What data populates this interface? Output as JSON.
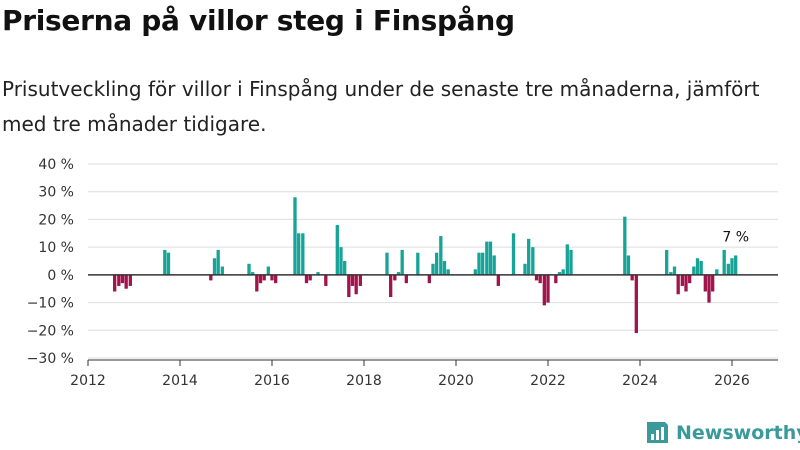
{
  "header": {
    "title": "Priserna på villor steg i Finspång",
    "subtitle": "Prisutveckling för villor i Finspång under de senaste tre månaderna, jämfört med tre månader tidigare."
  },
  "brand": {
    "name": "Newsworthy",
    "icon": "newsworthy-logo-icon"
  },
  "colors": {
    "positive": "#17a398",
    "negative": "#a0134b",
    "grid": "#dddddd",
    "zero": "#333333"
  },
  "chart_data": {
    "type": "bar",
    "title": "Priserna på villor steg i Finspång",
    "xlabel": "",
    "ylabel": "",
    "xlim": [
      2012,
      2027
    ],
    "ylim": [
      -30,
      40
    ],
    "y_ticks": [
      -30,
      -20,
      -10,
      0,
      10,
      20,
      30,
      40
    ],
    "y_tick_labels": [
      "−30 %",
      "−20 %",
      "−10 %",
      "0 %",
      "10 %",
      "20 %",
      "30 %",
      "40 %"
    ],
    "x_ticks": [
      2012,
      2014,
      2016,
      2018,
      2020,
      2022,
      2024,
      2026
    ],
    "x_tick_labels": [
      "2012",
      "2014",
      "2016",
      "2018",
      "2020",
      "2022",
      "2024",
      "2026"
    ],
    "annotations": [
      {
        "x": 2026.08,
        "y": 7,
        "text": "7 %"
      }
    ],
    "series": [
      {
        "name": "Prisutveckling",
        "x": [
          2012.58,
          2012.67,
          2012.75,
          2012.83,
          2012.92,
          2013.67,
          2013.75,
          2014.67,
          2014.75,
          2014.83,
          2014.92,
          2015.5,
          2015.58,
          2015.67,
          2015.75,
          2015.83,
          2015.92,
          2016.0,
          2016.08,
          2016.5,
          2016.58,
          2016.67,
          2016.75,
          2016.83,
          2017.0,
          2017.17,
          2017.42,
          2017.5,
          2017.58,
          2017.67,
          2017.75,
          2017.83,
          2017.92,
          2018.5,
          2018.58,
          2018.67,
          2018.75,
          2018.83,
          2018.92,
          2019.17,
          2019.42,
          2019.5,
          2019.58,
          2019.67,
          2019.75,
          2019.83,
          2020.42,
          2020.5,
          2020.58,
          2020.67,
          2020.75,
          2020.83,
          2020.92,
          2021.25,
          2021.5,
          2021.58,
          2021.67,
          2021.75,
          2021.83,
          2021.92,
          2022.0,
          2022.17,
          2022.25,
          2022.33,
          2022.42,
          2022.5,
          2023.67,
          2023.75,
          2023.83,
          2023.92,
          2024.58,
          2024.67,
          2024.75,
          2024.83,
          2024.92,
          2025.0,
          2025.08,
          2025.17,
          2025.25,
          2025.33,
          2025.42,
          2025.5,
          2025.58,
          2025.67,
          2025.83,
          2025.92,
          2026.0,
          2026.08
        ],
        "values": [
          -6,
          -4,
          -3,
          -5,
          -4,
          9,
          8,
          -2,
          6,
          9,
          3,
          4,
          1,
          -6,
          -3,
          -2,
          3,
          -2,
          -3,
          28,
          15,
          15,
          -3,
          -2,
          1,
          -4,
          18,
          10,
          5,
          -8,
          -4,
          -7,
          -4,
          8,
          -8,
          -2,
          1,
          9,
          -3,
          8,
          -3,
          4,
          8,
          14,
          5,
          2,
          2,
          8,
          8,
          12,
          12,
          7,
          -4,
          15,
          4,
          13,
          10,
          -2,
          -3,
          -11,
          -10,
          -3,
          1,
          2,
          11,
          9,
          21,
          7,
          -2,
          -21,
          9,
          1,
          3,
          -7,
          -4,
          -6,
          -3,
          3,
          6,
          5,
          -6,
          -10,
          -6,
          2,
          9,
          4,
          6,
          7
        ]
      }
    ]
  }
}
